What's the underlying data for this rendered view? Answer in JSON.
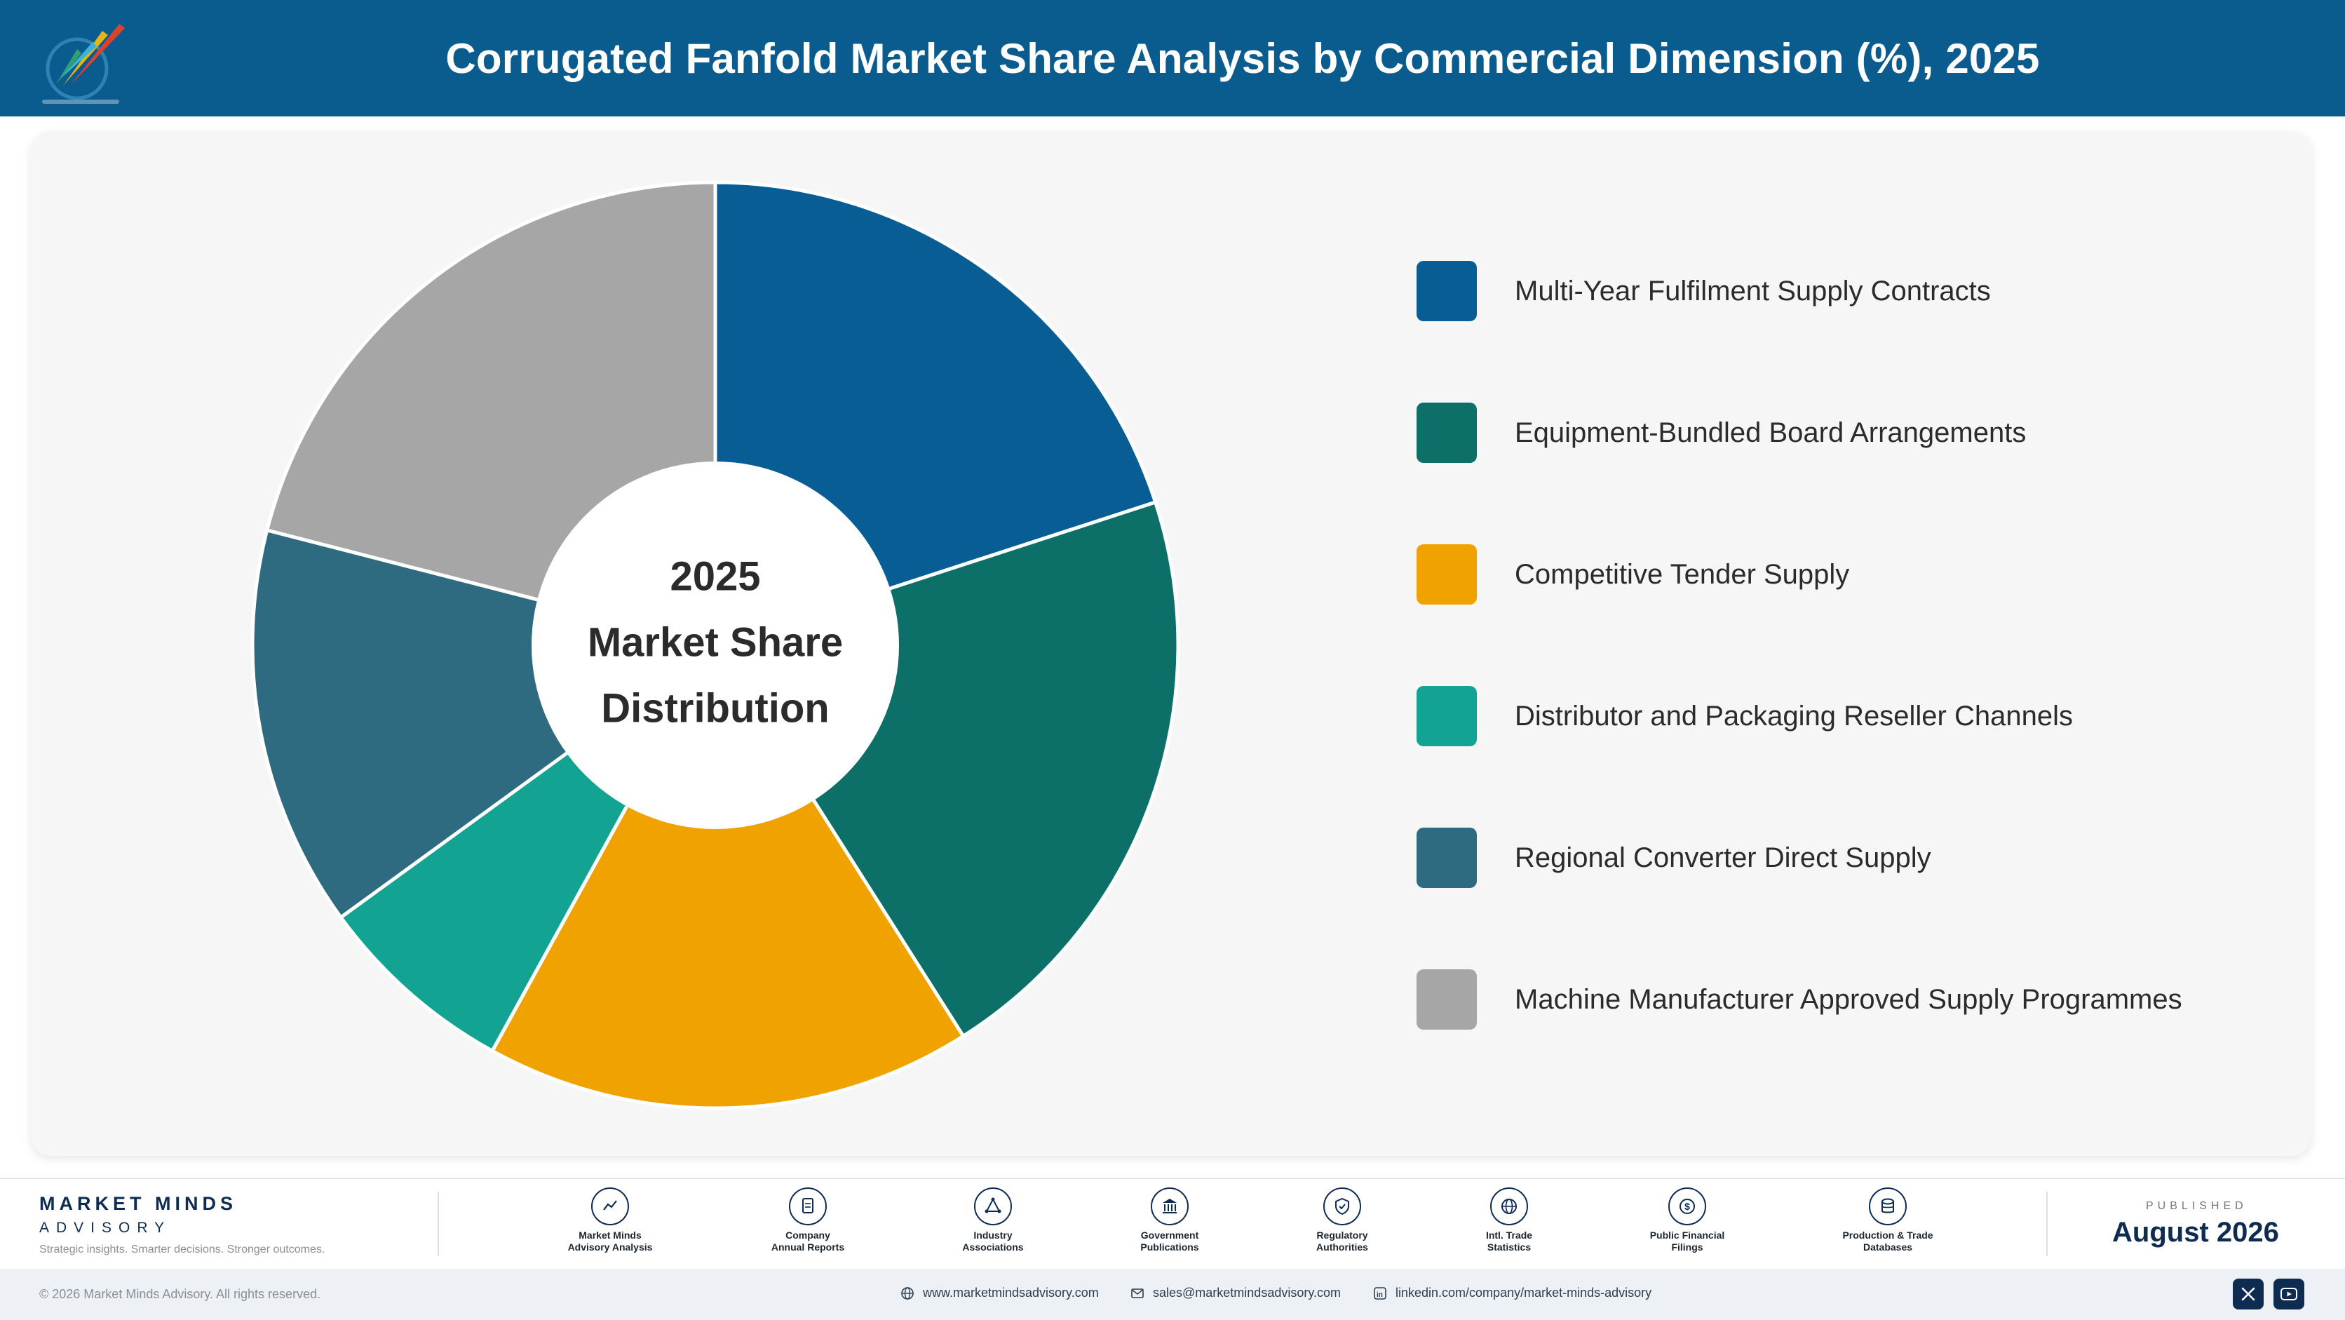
{
  "header": {
    "title": "Corrugated Fanfold Market Share Analysis by Commercial Dimension (%), 2025"
  },
  "chart_data": {
    "type": "pie",
    "center_label": [
      "2025",
      "Market Share",
      "Distribution"
    ],
    "categories": [
      "Multi-Year Fulfilment Supply Contracts",
      "Equipment-Bundled Board Arrangements",
      "Competitive Tender Supply",
      "Distributor and Packaging Reseller Channels",
      "Regional Converter Direct Supply",
      "Machine Manufacturer Approved Supply Programmes"
    ],
    "values": [
      20,
      21,
      17,
      7,
      14,
      21
    ],
    "colors": [
      "#085e94",
      "#0c7068",
      "#f0a300",
      "#12a392",
      "#2f6b80",
      "#a6a6a6"
    ],
    "legend_position": "right"
  },
  "footer": {
    "brand_name": "MARKET MINDS",
    "brand_sub": "ADVISORY",
    "tagline": "Strategic insights. Smarter decisions. Stronger outcomes.",
    "sources": [
      {
        "label": "Market Minds\nAdvisory Analysis",
        "icon": "chart-line-icon"
      },
      {
        "label": "Company\nAnnual Reports",
        "icon": "document-icon"
      },
      {
        "label": "Industry\nAssociations",
        "icon": "network-icon"
      },
      {
        "label": "Government\nPublications",
        "icon": "government-icon"
      },
      {
        "label": "Regulatory\nAuthorities",
        "icon": "shield-icon"
      },
      {
        "label": "Intl. Trade\nStatistics",
        "icon": "globe-icon"
      },
      {
        "label": "Public Financial\nFilings",
        "icon": "dollar-icon"
      },
      {
        "label": "Production & Trade\nDatabases",
        "icon": "database-icon"
      }
    ],
    "published_label": "PUBLISHED",
    "published_date": "August 2026"
  },
  "bottom_bar": {
    "copyright": "© 2026 Market Minds Advisory. All rights reserved.",
    "website": "www.marketmindsadvisory.com",
    "email": "sales@marketmindsadvisory.com",
    "linkedin": "linkedin.com/company/market-minds-advisory",
    "social": [
      "x-icon",
      "youtube-icon"
    ]
  }
}
